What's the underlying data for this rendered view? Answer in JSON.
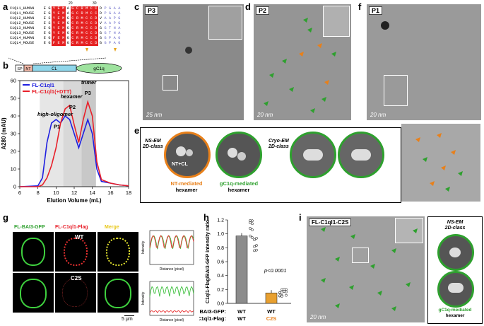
{
  "panels": {
    "a": {
      "label": "a",
      "pos_20": "20",
      "pos_30": "30",
      "rows": [
        {
          "name": "C1QL1_HUMAN",
          "seq": "EGYEMAGCRMCCDPGAA"
        },
        {
          "name": "C1QL1_MOUSE",
          "seq": "EGYEMAGCRMCCDPGAA"
        },
        {
          "name": "C1QL2_HUMAN",
          "seq": "ESYEMGCRMCCDVAAPG"
        },
        {
          "name": "C1QL2_MOUSE",
          "seq": "ESYEMGCRMCCDVAAPG"
        },
        {
          "name": "C1QL3_HUMAN",
          "seq": "EGYEMGCRMCCDGGTHA"
        },
        {
          "name": "C1QL3_MOUSE",
          "seq": "EGYEMGCRMCCDGGTHA"
        },
        {
          "name": "C1QL4_HUMAN",
          "seq": "EGFEMGCRMCCDGGPAG"
        },
        {
          "name": "C1QL4_MOUSE",
          "seq": "EGFEMGCRMCCDGGPAG"
        }
      ]
    },
    "b": {
      "label": "b",
      "domains": {
        "sp": "SP",
        "nt": "NT",
        "cl": "CL",
        "gc1q": "gC1q"
      },
      "legend": [
        "FL-C1ql1",
        "FL-C1ql1(+DTT)"
      ],
      "ylabel": "A280 (mAU)",
      "xlabel": "Elution Volume (mL)",
      "peaks": {
        "p1a": "high-oligomer",
        "p1b": "P1",
        "p2a": "hexamer",
        "p2b": "P2",
        "p3a": "trimer",
        "p3b": "P3"
      }
    },
    "c": {
      "label": "c",
      "tag": "P3",
      "scale": "25 nm"
    },
    "d": {
      "label": "d",
      "tag": "P2",
      "scale": "20 nm"
    },
    "e": {
      "label": "e",
      "ns1": "NS-EM",
      "ns2": "2D-class",
      "ntcl": "NT+CL",
      "cryo1": "Cryo-EM",
      "cryo2": "2D-class",
      "nt_cap1": "NT-mediated",
      "nt_cap2": "hexamer",
      "gc_cap1": "gC1q-mediated",
      "gc_cap2": "hexamer"
    },
    "f": {
      "label": "f",
      "tag": "P1",
      "scale": "20 nm"
    },
    "g": {
      "label": "g",
      "col1": "FL-BAI3-GFP",
      "col2": "FL-C1ql1-Flag",
      "col3": "Merge",
      "wt": "WT",
      "c2s": "C2S",
      "scale": "5 μm",
      "ylab": "Intensity",
      "xlab": "Distance (pixel)"
    },
    "h": {
      "label": "h",
      "ylabel": "C1ql1-Flag/BAI3-GFP intensity ratio",
      "pval": "p<0.0001",
      "row1_label": "BAI3-GFP:",
      "row2_label": "C1ql1-Flag:",
      "bars": [
        {
          "top": "WT",
          "bottom": "WT"
        },
        {
          "top": "WT",
          "bottom": "C2S"
        }
      ]
    },
    "i": {
      "label": "i",
      "tag": "FL-C1ql1-C2S",
      "scale": "20 nm",
      "ns1": "NS-EM",
      "ns2": "2D-class",
      "cap1": "gC1q-mediated",
      "cap2": "hexamer"
    }
  },
  "colors": {
    "blue": "#1f1fe0",
    "red": "#e8202a",
    "orange": "#e8801a",
    "green": "#2ea02e",
    "conserved": "#e52222"
  },
  "chart_data": [
    {
      "type": "line",
      "title": "",
      "xlabel": "Elution Volume (mL)",
      "ylabel": "A280 (mAU)",
      "xlim": [
        6,
        18
      ],
      "ylim": [
        0,
        60
      ],
      "xticks": [
        6,
        8,
        10,
        12,
        14,
        16,
        18
      ],
      "yticks": [
        0,
        10,
        20,
        30,
        40,
        50,
        60
      ],
      "series": [
        {
          "name": "FL-C1ql1",
          "x": [
            6,
            8,
            8.5,
            9,
            9.5,
            10,
            10.5,
            11,
            11.5,
            12,
            12.5,
            13,
            13.5,
            14,
            14.5,
            15,
            16,
            17,
            18
          ],
          "y": [
            0,
            0.5,
            5,
            25,
            36,
            38,
            36,
            40,
            38,
            30,
            22,
            30,
            38,
            30,
            10,
            3,
            2,
            1,
            0.5
          ]
        },
        {
          "name": "FL-C1ql1(+DTT)",
          "x": [
            6,
            8,
            8.5,
            9,
            9.5,
            10,
            10.5,
            11,
            11.5,
            12,
            12.5,
            13,
            13.5,
            14,
            14.5,
            15,
            16,
            17,
            18
          ],
          "y": [
            0,
            0,
            1,
            5,
            12,
            22,
            36,
            44,
            46,
            35,
            25,
            38,
            48,
            40,
            14,
            4,
            2,
            1,
            0.5
          ]
        }
      ]
    },
    {
      "type": "bar",
      "title": "",
      "ylabel": "C1ql1-Flag/BAI3-GFP intensity ratio",
      "categories": [
        "WT/WT",
        "WT/C2S"
      ],
      "values": [
        0.97,
        0.15
      ],
      "ylim": [
        0,
        1.2
      ],
      "yticks": [
        0,
        0.2,
        0.4,
        0.6,
        0.8,
        1.0,
        1.2
      ]
    }
  ]
}
